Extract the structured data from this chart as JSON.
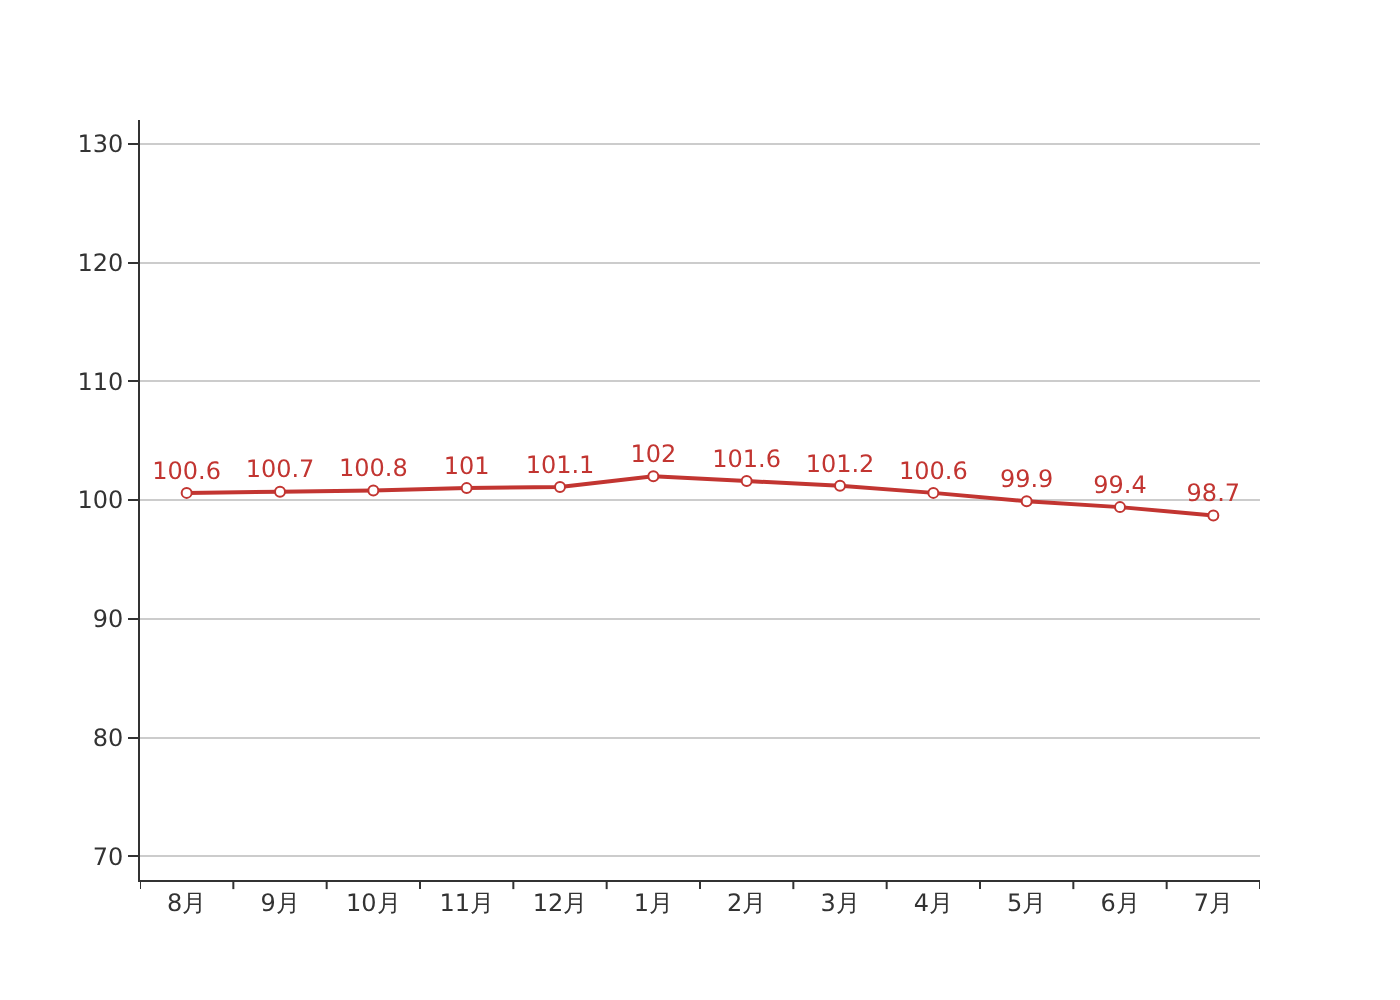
{
  "chart_data": {
    "type": "line",
    "categories": [
      "8月",
      "9月",
      "10月",
      "11月",
      "12月",
      "1月",
      "2月",
      "3月",
      "4月",
      "5月",
      "6月",
      "7月"
    ],
    "values": [
      100.6,
      100.7,
      100.8,
      101,
      101.1,
      102,
      101.6,
      101.2,
      100.6,
      99.9,
      99.4,
      98.7
    ],
    "color": "#c23531",
    "ylim": [
      68,
      132
    ],
    "yticks": [
      70,
      80,
      90,
      100,
      110,
      120,
      130
    ],
    "grid": "y",
    "marker": "circle",
    "line_style": "solid",
    "data_labels": true,
    "legend": false
  }
}
